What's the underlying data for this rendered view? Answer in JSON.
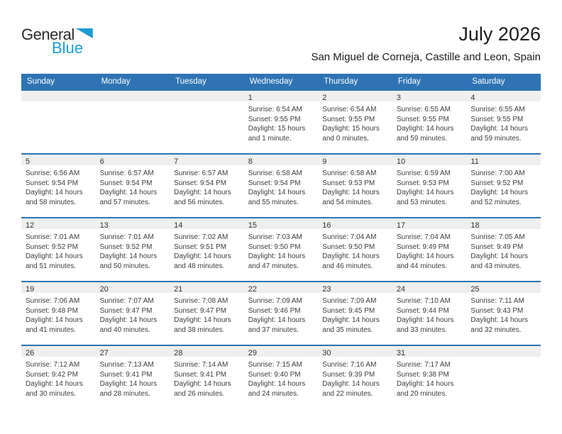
{
  "logo": {
    "text_top": "General",
    "text_bottom": "Blue"
  },
  "header": {
    "title": "July 2026",
    "subtitle": "San Miguel de Corneja, Castille and Leon, Spain"
  },
  "weekdays": [
    "Sunday",
    "Monday",
    "Tuesday",
    "Wednesday",
    "Thursday",
    "Friday",
    "Saturday"
  ],
  "colors": {
    "header_bar": "#2e74b5",
    "week_separator": "#2e74b5",
    "day_number_band": "#efefef",
    "logo_blue": "#1e9cd7",
    "title_text": "#1c1c1c",
    "body_text": "#3d3d3d"
  },
  "weeks": [
    [
      {
        "day": "",
        "sunrise": "",
        "sunset": "",
        "daylight1": "",
        "daylight2": ""
      },
      {
        "day": "",
        "sunrise": "",
        "sunset": "",
        "daylight1": "",
        "daylight2": ""
      },
      {
        "day": "",
        "sunrise": "",
        "sunset": "",
        "daylight1": "",
        "daylight2": ""
      },
      {
        "day": "1",
        "sunrise": "Sunrise: 6:54 AM",
        "sunset": "Sunset: 9:55 PM",
        "daylight1": "Daylight: 15 hours",
        "daylight2": "and 1 minute."
      },
      {
        "day": "2",
        "sunrise": "Sunrise: 6:54 AM",
        "sunset": "Sunset: 9:55 PM",
        "daylight1": "Daylight: 15 hours",
        "daylight2": "and 0 minutes."
      },
      {
        "day": "3",
        "sunrise": "Sunrise: 6:55 AM",
        "sunset": "Sunset: 9:55 PM",
        "daylight1": "Daylight: 14 hours",
        "daylight2": "and 59 minutes."
      },
      {
        "day": "4",
        "sunrise": "Sunrise: 6:55 AM",
        "sunset": "Sunset: 9:55 PM",
        "daylight1": "Daylight: 14 hours",
        "daylight2": "and 59 minutes."
      }
    ],
    [
      {
        "day": "5",
        "sunrise": "Sunrise: 6:56 AM",
        "sunset": "Sunset: 9:54 PM",
        "daylight1": "Daylight: 14 hours",
        "daylight2": "and 58 minutes."
      },
      {
        "day": "6",
        "sunrise": "Sunrise: 6:57 AM",
        "sunset": "Sunset: 9:54 PM",
        "daylight1": "Daylight: 14 hours",
        "daylight2": "and 57 minutes."
      },
      {
        "day": "7",
        "sunrise": "Sunrise: 6:57 AM",
        "sunset": "Sunset: 9:54 PM",
        "daylight1": "Daylight: 14 hours",
        "daylight2": "and 56 minutes."
      },
      {
        "day": "8",
        "sunrise": "Sunrise: 6:58 AM",
        "sunset": "Sunset: 9:54 PM",
        "daylight1": "Daylight: 14 hours",
        "daylight2": "and 55 minutes."
      },
      {
        "day": "9",
        "sunrise": "Sunrise: 6:58 AM",
        "sunset": "Sunset: 9:53 PM",
        "daylight1": "Daylight: 14 hours",
        "daylight2": "and 54 minutes."
      },
      {
        "day": "10",
        "sunrise": "Sunrise: 6:59 AM",
        "sunset": "Sunset: 9:53 PM",
        "daylight1": "Daylight: 14 hours",
        "daylight2": "and 53 minutes."
      },
      {
        "day": "11",
        "sunrise": "Sunrise: 7:00 AM",
        "sunset": "Sunset: 9:52 PM",
        "daylight1": "Daylight: 14 hours",
        "daylight2": "and 52 minutes."
      }
    ],
    [
      {
        "day": "12",
        "sunrise": "Sunrise: 7:01 AM",
        "sunset": "Sunset: 9:52 PM",
        "daylight1": "Daylight: 14 hours",
        "daylight2": "and 51 minutes."
      },
      {
        "day": "13",
        "sunrise": "Sunrise: 7:01 AM",
        "sunset": "Sunset: 9:52 PM",
        "daylight1": "Daylight: 14 hours",
        "daylight2": "and 50 minutes."
      },
      {
        "day": "14",
        "sunrise": "Sunrise: 7:02 AM",
        "sunset": "Sunset: 9:51 PM",
        "daylight1": "Daylight: 14 hours",
        "daylight2": "and 48 minutes."
      },
      {
        "day": "15",
        "sunrise": "Sunrise: 7:03 AM",
        "sunset": "Sunset: 9:50 PM",
        "daylight1": "Daylight: 14 hours",
        "daylight2": "and 47 minutes."
      },
      {
        "day": "16",
        "sunrise": "Sunrise: 7:04 AM",
        "sunset": "Sunset: 9:50 PM",
        "daylight1": "Daylight: 14 hours",
        "daylight2": "and 46 minutes."
      },
      {
        "day": "17",
        "sunrise": "Sunrise: 7:04 AM",
        "sunset": "Sunset: 9:49 PM",
        "daylight1": "Daylight: 14 hours",
        "daylight2": "and 44 minutes."
      },
      {
        "day": "18",
        "sunrise": "Sunrise: 7:05 AM",
        "sunset": "Sunset: 9:49 PM",
        "daylight1": "Daylight: 14 hours",
        "daylight2": "and 43 minutes."
      }
    ],
    [
      {
        "day": "19",
        "sunrise": "Sunrise: 7:06 AM",
        "sunset": "Sunset: 9:48 PM",
        "daylight1": "Daylight: 14 hours",
        "daylight2": "and 41 minutes."
      },
      {
        "day": "20",
        "sunrise": "Sunrise: 7:07 AM",
        "sunset": "Sunset: 9:47 PM",
        "daylight1": "Daylight: 14 hours",
        "daylight2": "and 40 minutes."
      },
      {
        "day": "21",
        "sunrise": "Sunrise: 7:08 AM",
        "sunset": "Sunset: 9:47 PM",
        "daylight1": "Daylight: 14 hours",
        "daylight2": "and 38 minutes."
      },
      {
        "day": "22",
        "sunrise": "Sunrise: 7:09 AM",
        "sunset": "Sunset: 9:46 PM",
        "daylight1": "Daylight: 14 hours",
        "daylight2": "and 37 minutes."
      },
      {
        "day": "23",
        "sunrise": "Sunrise: 7:09 AM",
        "sunset": "Sunset: 9:45 PM",
        "daylight1": "Daylight: 14 hours",
        "daylight2": "and 35 minutes."
      },
      {
        "day": "24",
        "sunrise": "Sunrise: 7:10 AM",
        "sunset": "Sunset: 9:44 PM",
        "daylight1": "Daylight: 14 hours",
        "daylight2": "and 33 minutes."
      },
      {
        "day": "25",
        "sunrise": "Sunrise: 7:11 AM",
        "sunset": "Sunset: 9:43 PM",
        "daylight1": "Daylight: 14 hours",
        "daylight2": "and 32 minutes."
      }
    ],
    [
      {
        "day": "26",
        "sunrise": "Sunrise: 7:12 AM",
        "sunset": "Sunset: 9:42 PM",
        "daylight1": "Daylight: 14 hours",
        "daylight2": "and 30 minutes."
      },
      {
        "day": "27",
        "sunrise": "Sunrise: 7:13 AM",
        "sunset": "Sunset: 9:41 PM",
        "daylight1": "Daylight: 14 hours",
        "daylight2": "and 28 minutes."
      },
      {
        "day": "28",
        "sunrise": "Sunrise: 7:14 AM",
        "sunset": "Sunset: 9:41 PM",
        "daylight1": "Daylight: 14 hours",
        "daylight2": "and 26 minutes."
      },
      {
        "day": "29",
        "sunrise": "Sunrise: 7:15 AM",
        "sunset": "Sunset: 9:40 PM",
        "daylight1": "Daylight: 14 hours",
        "daylight2": "and 24 minutes."
      },
      {
        "day": "30",
        "sunrise": "Sunrise: 7:16 AM",
        "sunset": "Sunset: 9:39 PM",
        "daylight1": "Daylight: 14 hours",
        "daylight2": "and 22 minutes."
      },
      {
        "day": "31",
        "sunrise": "Sunrise: 7:17 AM",
        "sunset": "Sunset: 9:38 PM",
        "daylight1": "Daylight: 14 hours",
        "daylight2": "and 20 minutes."
      },
      {
        "day": "",
        "sunrise": "",
        "sunset": "",
        "daylight1": "",
        "daylight2": ""
      }
    ]
  ]
}
